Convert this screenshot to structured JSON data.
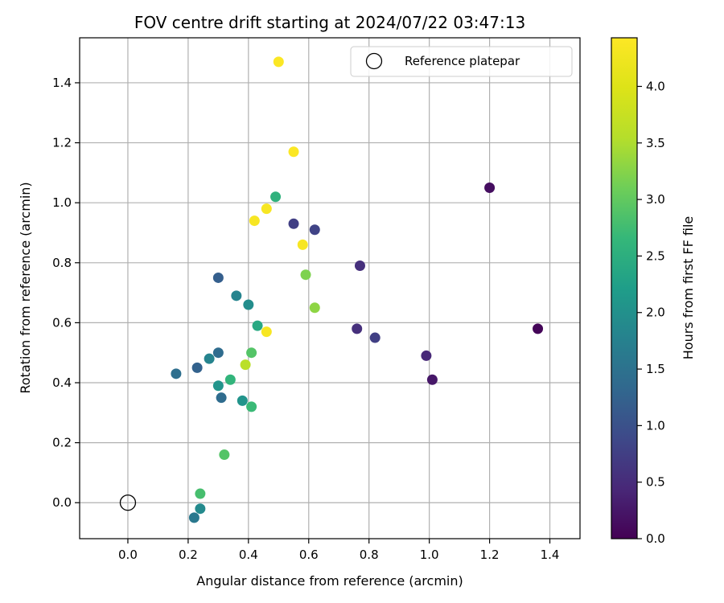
{
  "chart_data": {
    "type": "scatter",
    "title": "FOV centre drift starting at 2024/07/22 03:47:13",
    "xlabel": "Angular distance from reference (arcmin)",
    "ylabel": "Rotation from reference (arcmin)",
    "xlim": [
      -0.16,
      1.5
    ],
    "ylim": [
      -0.12,
      1.55
    ],
    "xticks": [
      0.0,
      0.2,
      0.4,
      0.6,
      0.8,
      1.0,
      1.2,
      1.4
    ],
    "yticks": [
      0.0,
      0.2,
      0.4,
      0.6,
      0.8,
      1.0,
      1.2,
      1.4
    ],
    "grid": true,
    "legend": {
      "position": "top-right",
      "label": "Reference platepar"
    },
    "reference_point": {
      "x": 0.0,
      "y": 0.0
    },
    "colorbar": {
      "label": "Hours from first FF file",
      "range": [
        0.0,
        4.43
      ],
      "ticks": [
        0.0,
        0.5,
        1.0,
        1.5,
        2.0,
        2.5,
        3.0,
        3.5,
        4.0
      ],
      "colormap": "viridis"
    },
    "points": [
      {
        "x": 1.36,
        "y": 0.58,
        "c": 0.05
      },
      {
        "x": 1.2,
        "y": 1.05,
        "c": 0.15
      },
      {
        "x": 1.01,
        "y": 0.41,
        "c": 0.25
      },
      {
        "x": 0.99,
        "y": 0.49,
        "c": 0.45
      },
      {
        "x": 0.77,
        "y": 0.79,
        "c": 0.55
      },
      {
        "x": 0.76,
        "y": 0.58,
        "c": 0.55
      },
      {
        "x": 0.82,
        "y": 0.55,
        "c": 0.75
      },
      {
        "x": 0.62,
        "y": 0.91,
        "c": 0.8
      },
      {
        "x": 0.55,
        "y": 0.93,
        "c": 0.75
      },
      {
        "x": 0.3,
        "y": 0.75,
        "c": 1.2
      },
      {
        "x": 0.23,
        "y": 0.45,
        "c": 1.25
      },
      {
        "x": 0.16,
        "y": 0.43,
        "c": 1.45
      },
      {
        "x": 0.31,
        "y": 0.35,
        "c": 1.4
      },
      {
        "x": 0.3,
        "y": 0.5,
        "c": 1.4
      },
      {
        "x": 0.27,
        "y": 0.48,
        "c": 1.8
      },
      {
        "x": 0.22,
        "y": -0.05,
        "c": 1.6
      },
      {
        "x": 0.24,
        "y": -0.02,
        "c": 1.9
      },
      {
        "x": 0.36,
        "y": 0.69,
        "c": 1.8
      },
      {
        "x": 0.4,
        "y": 0.66,
        "c": 1.95
      },
      {
        "x": 0.3,
        "y": 0.39,
        "c": 2.05
      },
      {
        "x": 0.38,
        "y": 0.34,
        "c": 2.05
      },
      {
        "x": 0.43,
        "y": 0.59,
        "c": 2.4
      },
      {
        "x": 0.49,
        "y": 1.02,
        "c": 2.55
      },
      {
        "x": 0.34,
        "y": 0.41,
        "c": 2.6
      },
      {
        "x": 0.41,
        "y": 0.32,
        "c": 2.7
      },
      {
        "x": 0.24,
        "y": 0.03,
        "c": 2.8
      },
      {
        "x": 0.41,
        "y": 0.5,
        "c": 2.9
      },
      {
        "x": 0.32,
        "y": 0.16,
        "c": 2.9
      },
      {
        "x": 0.59,
        "y": 0.76,
        "c": 3.2
      },
      {
        "x": 0.62,
        "y": 0.65,
        "c": 3.3
      },
      {
        "x": 0.39,
        "y": 0.46,
        "c": 3.6
      },
      {
        "x": 0.46,
        "y": 0.57,
        "c": 4.35
      },
      {
        "x": 0.58,
        "y": 0.86,
        "c": 4.35
      },
      {
        "x": 0.42,
        "y": 0.94,
        "c": 4.35
      },
      {
        "x": 0.46,
        "y": 0.98,
        "c": 4.35
      },
      {
        "x": 0.55,
        "y": 1.17,
        "c": 4.4
      },
      {
        "x": 0.5,
        "y": 1.47,
        "c": 4.4
      }
    ]
  }
}
